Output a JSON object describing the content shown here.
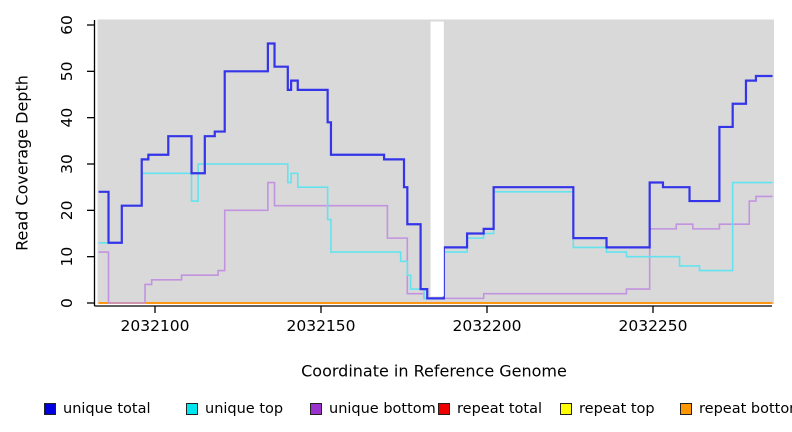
{
  "page": {
    "background": "#ffffff"
  },
  "chart_data": {
    "type": "line",
    "style": "step",
    "title": "",
    "xlabel": "Coordinate in Reference Genome",
    "ylabel": "Read Coverage Depth",
    "xlim": [
      2032083,
      2032286
    ],
    "ylim": [
      0,
      60
    ],
    "x_ticks": [
      2032100,
      2032150,
      2032200,
      2032250
    ],
    "y_ticks": [
      0,
      10,
      20,
      30,
      40,
      50,
      60
    ],
    "plot_background": "#d9d9d9",
    "grid": false,
    "legend_position": "bottom",
    "gap_region": {
      "x_start": 2032183,
      "x_end": 2032187
    },
    "series": [
      {
        "name": "repeat total",
        "color": "#ee0000",
        "line_width": 1.5,
        "points": [
          [
            2032083,
            0
          ]
        ]
      },
      {
        "name": "repeat top",
        "color": "#ffff00",
        "line_width": 1.5,
        "points": [
          [
            2032083,
            0
          ]
        ]
      },
      {
        "name": "repeat bottom",
        "color": "#ff9712",
        "line_width": 2,
        "points": [
          [
            2032083,
            0
          ]
        ]
      },
      {
        "name": "unique bottom",
        "color": "#c193e0",
        "line_width": 1.6,
        "points": [
          [
            2032083,
            11
          ],
          [
            2032086,
            0
          ],
          [
            2032097,
            4
          ],
          [
            2032099,
            5
          ],
          [
            2032108,
            6
          ],
          [
            2032119,
            7
          ],
          [
            2032121,
            20
          ],
          [
            2032134,
            26
          ],
          [
            2032136,
            21
          ],
          [
            2032170,
            14
          ],
          [
            2032176,
            2
          ],
          [
            2032181,
            1
          ],
          [
            2032199,
            2
          ],
          [
            2032242,
            3
          ],
          [
            2032249,
            16
          ],
          [
            2032257,
            17
          ],
          [
            2032262,
            16
          ],
          [
            2032270,
            17
          ],
          [
            2032279,
            22
          ],
          [
            2032281,
            23
          ]
        ]
      },
      {
        "name": "unique top",
        "color": "#63e3ee",
        "line_width": 1.6,
        "points": [
          [
            2032083,
            13
          ],
          [
            2032090,
            21
          ],
          [
            2032096,
            28
          ],
          [
            2032111,
            22
          ],
          [
            2032113,
            30
          ],
          [
            2032140,
            26
          ],
          [
            2032141,
            28
          ],
          [
            2032143,
            25
          ],
          [
            2032152,
            18
          ],
          [
            2032153,
            11
          ],
          [
            2032174,
            9
          ],
          [
            2032176,
            6
          ],
          [
            2032177,
            3
          ],
          [
            2032181,
            1
          ],
          [
            2032187,
            11
          ],
          [
            2032194,
            14
          ],
          [
            2032199,
            15
          ],
          [
            2032202,
            24
          ],
          [
            2032226,
            12
          ],
          [
            2032236,
            11
          ],
          [
            2032242,
            10
          ],
          [
            2032258,
            8
          ],
          [
            2032264,
            7
          ],
          [
            2032274,
            26
          ]
        ]
      },
      {
        "name": "unique total",
        "color": "#3434e8",
        "line_width": 2.2,
        "points": [
          [
            2032083,
            24
          ],
          [
            2032086,
            13
          ],
          [
            2032090,
            21
          ],
          [
            2032096,
            31
          ],
          [
            2032098,
            32
          ],
          [
            2032104,
            36
          ],
          [
            2032111,
            28
          ],
          [
            2032115,
            36
          ],
          [
            2032118,
            37
          ],
          [
            2032121,
            50
          ],
          [
            2032134,
            56
          ],
          [
            2032136,
            51
          ],
          [
            2032140,
            46
          ],
          [
            2032141,
            48
          ],
          [
            2032143,
            46
          ],
          [
            2032152,
            39
          ],
          [
            2032153,
            32
          ],
          [
            2032169,
            31
          ],
          [
            2032175,
            25
          ],
          [
            2032176,
            17
          ],
          [
            2032180,
            3
          ],
          [
            2032182,
            1
          ],
          [
            2032187,
            12
          ],
          [
            2032194,
            15
          ],
          [
            2032199,
            16
          ],
          [
            2032202,
            25
          ],
          [
            2032226,
            14
          ],
          [
            2032236,
            12
          ],
          [
            2032249,
            26
          ],
          [
            2032253,
            25
          ],
          [
            2032261,
            22
          ],
          [
            2032270,
            38
          ],
          [
            2032274,
            43
          ],
          [
            2032278,
            48
          ],
          [
            2032281,
            49
          ]
        ]
      }
    ]
  },
  "legend": {
    "items": [
      {
        "label": "unique total",
        "color": "#0000e1"
      },
      {
        "label": "unique top",
        "color": "#00e5ee"
      },
      {
        "label": "unique bottom",
        "color": "#9933cc"
      },
      {
        "label": "repeat total",
        "color": "#ee0000"
      },
      {
        "label": "repeat top",
        "color": "#ffff00"
      },
      {
        "label": "repeat bottom",
        "color": "#ff9800"
      }
    ]
  }
}
